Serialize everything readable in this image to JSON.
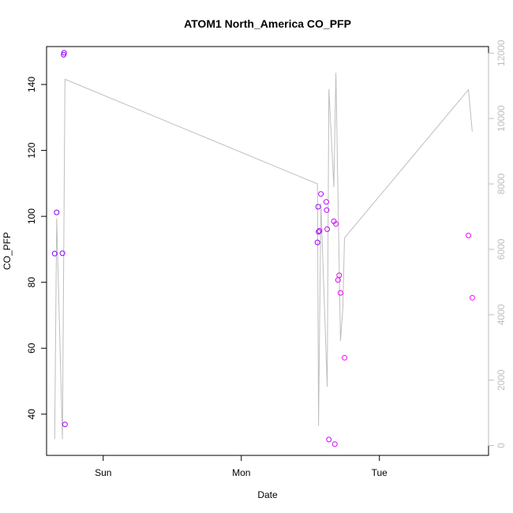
{
  "chart_data": {
    "type": "scatter",
    "title": "ATOM1 North_America CO_PFP",
    "xlabel": "Date",
    "ylabel": "CO_PFP",
    "x_ticks": [
      {
        "label": "Sun",
        "value": 1.0
      },
      {
        "label": "Mon",
        "value": 2.0
      },
      {
        "label": "Tue",
        "value": 3.0
      }
    ],
    "xlim": [
      0.59,
      3.79
    ],
    "ylim": [
      27.5,
      151.5
    ],
    "y_ticks": [
      40,
      60,
      80,
      100,
      120,
      140
    ],
    "y2lim": [
      -300,
      12200
    ],
    "y2_ticks": [
      0,
      2000,
      4000,
      6000,
      8000,
      10000,
      12000
    ],
    "points_color_range": [
      "#7f00ff",
      "#ff00ff"
    ],
    "line_color": "#bebebe",
    "points": [
      {
        "x": 0.649,
        "y": 88.7
      },
      {
        "x": 0.663,
        "y": 101.2
      },
      {
        "x": 0.705,
        "y": 88.8
      },
      {
        "x": 0.714,
        "y": 149.0
      },
      {
        "x": 0.717,
        "y": 149.6
      },
      {
        "x": 0.723,
        "y": 36.9
      },
      {
        "x": 2.551,
        "y": 92.1
      },
      {
        "x": 2.556,
        "y": 102.9
      },
      {
        "x": 2.559,
        "y": 95.3
      },
      {
        "x": 2.566,
        "y": 95.6
      },
      {
        "x": 2.576,
        "y": 106.8
      },
      {
        "x": 2.615,
        "y": 104.4
      },
      {
        "x": 2.618,
        "y": 101.9
      },
      {
        "x": 2.622,
        "y": 96.1
      },
      {
        "x": 2.634,
        "y": 32.3
      },
      {
        "x": 2.67,
        "y": 98.5
      },
      {
        "x": 2.677,
        "y": 30.9
      },
      {
        "x": 2.685,
        "y": 97.7
      },
      {
        "x": 2.7,
        "y": 80.7
      },
      {
        "x": 2.709,
        "y": 82.1
      },
      {
        "x": 2.718,
        "y": 76.8
      },
      {
        "x": 2.747,
        "y": 57.1
      },
      {
        "x": 3.644,
        "y": 94.2
      },
      {
        "x": 3.672,
        "y": 75.3
      }
    ],
    "line_series": {
      "axis": "right",
      "x": [
        0.649,
        0.663,
        0.705,
        0.723,
        2.551,
        2.559,
        2.576,
        2.622,
        2.634,
        2.67,
        2.685,
        2.718,
        2.735,
        2.747,
        3.644,
        3.672
      ],
      "y": [
        200,
        6950,
        200,
        11200,
        8000,
        600,
        7400,
        1800,
        10900,
        7900,
        11400,
        3200,
        4200,
        6350,
        10880,
        9600
      ]
    }
  }
}
